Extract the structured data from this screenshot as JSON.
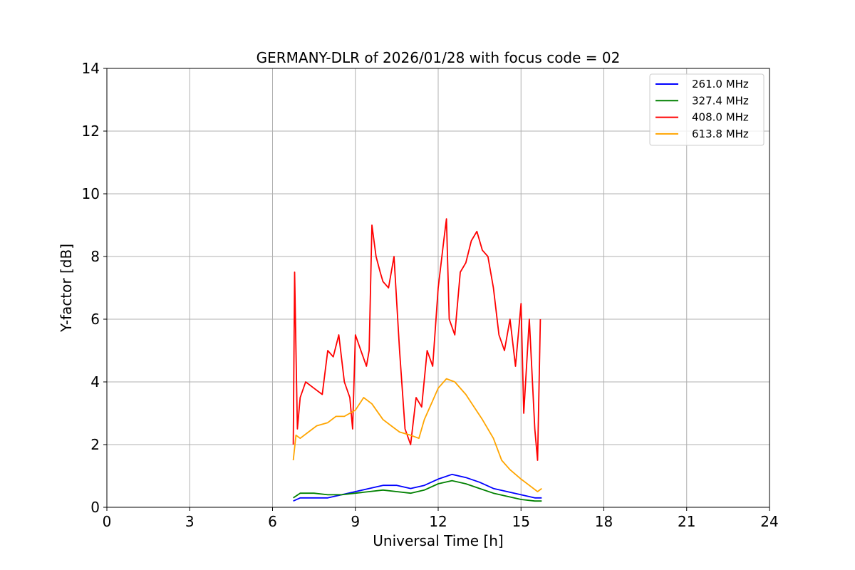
{
  "chart_data": {
    "type": "line",
    "title": "GERMANY-DLR of 2026/01/28 with focus code = 02",
    "xlabel": "Universal Time [h]",
    "ylabel": "Y-factor [dB]",
    "xlim": [
      0,
      24
    ],
    "ylim": [
      0,
      14
    ],
    "xticks": [
      0,
      3,
      6,
      9,
      12,
      15,
      18,
      21,
      24
    ],
    "yticks": [
      0,
      2,
      4,
      6,
      8,
      10,
      12,
      14
    ],
    "grid": true,
    "legend_position": "top-right",
    "series": [
      {
        "name": "261.0 MHz",
        "color": "#0000ff",
        "x": [
          6.75,
          7.0,
          7.5,
          8.0,
          8.5,
          9.0,
          9.5,
          10.0,
          10.5,
          11.0,
          11.5,
          12.0,
          12.5,
          13.0,
          13.5,
          14.0,
          14.5,
          15.0,
          15.5,
          15.75
        ],
        "y": [
          0.2,
          0.3,
          0.3,
          0.3,
          0.4,
          0.5,
          0.6,
          0.7,
          0.7,
          0.6,
          0.7,
          0.9,
          1.05,
          0.95,
          0.8,
          0.6,
          0.5,
          0.4,
          0.3,
          0.3
        ]
      },
      {
        "name": "327.4 MHz",
        "color": "#008000",
        "x": [
          6.75,
          7.0,
          7.5,
          8.0,
          8.5,
          9.0,
          9.5,
          10.0,
          10.5,
          11.0,
          11.5,
          12.0,
          12.5,
          13.0,
          13.5,
          14.0,
          14.5,
          15.0,
          15.5,
          15.75
        ],
        "y": [
          0.3,
          0.45,
          0.45,
          0.4,
          0.4,
          0.45,
          0.5,
          0.55,
          0.5,
          0.45,
          0.55,
          0.75,
          0.85,
          0.75,
          0.6,
          0.45,
          0.35,
          0.25,
          0.2,
          0.2
        ]
      },
      {
        "name": "408.0 MHz",
        "color": "#ff0000",
        "x": [
          6.75,
          6.8,
          6.85,
          6.9,
          7.0,
          7.2,
          7.5,
          7.8,
          8.0,
          8.2,
          8.4,
          8.6,
          8.8,
          8.9,
          9.0,
          9.2,
          9.4,
          9.5,
          9.6,
          9.75,
          9.9,
          10.0,
          10.2,
          10.4,
          10.6,
          10.8,
          11.0,
          11.2,
          11.4,
          11.6,
          11.8,
          12.0,
          12.2,
          12.3,
          12.4,
          12.6,
          12.8,
          13.0,
          13.2,
          13.4,
          13.6,
          13.8,
          14.0,
          14.2,
          14.4,
          14.6,
          14.8,
          15.0,
          15.1,
          15.3,
          15.5,
          15.6,
          15.7
        ],
        "y": [
          2.0,
          7.5,
          5.0,
          2.5,
          3.5,
          4.0,
          3.8,
          3.6,
          5.0,
          4.8,
          5.5,
          4.0,
          3.5,
          2.5,
          5.5,
          5.0,
          4.5,
          5.0,
          9.0,
          8.0,
          7.5,
          7.2,
          7.0,
          8.0,
          5.0,
          2.5,
          2.0,
          3.5,
          3.2,
          5.0,
          4.5,
          7.0,
          8.5,
          9.2,
          6.0,
          5.5,
          7.5,
          7.8,
          8.5,
          8.8,
          8.2,
          8.0,
          7.0,
          5.5,
          5.0,
          6.0,
          4.5,
          6.5,
          3.0,
          6.0,
          2.5,
          1.5,
          6.0
        ]
      },
      {
        "name": "613.8 MHz",
        "color": "#ffa500",
        "x": [
          6.75,
          6.85,
          7.0,
          7.3,
          7.6,
          8.0,
          8.3,
          8.6,
          9.0,
          9.3,
          9.6,
          10.0,
          10.3,
          10.6,
          11.0,
          11.3,
          11.5,
          11.8,
          12.0,
          12.3,
          12.6,
          13.0,
          13.3,
          13.6,
          14.0,
          14.3,
          14.6,
          15.0,
          15.3,
          15.6,
          15.75
        ],
        "y": [
          1.5,
          2.3,
          2.2,
          2.4,
          2.6,
          2.7,
          2.9,
          2.9,
          3.1,
          3.5,
          3.3,
          2.8,
          2.6,
          2.4,
          2.3,
          2.2,
          2.8,
          3.4,
          3.8,
          4.1,
          4.0,
          3.6,
          3.2,
          2.8,
          2.2,
          1.5,
          1.2,
          0.9,
          0.7,
          0.5,
          0.6
        ]
      }
    ]
  }
}
